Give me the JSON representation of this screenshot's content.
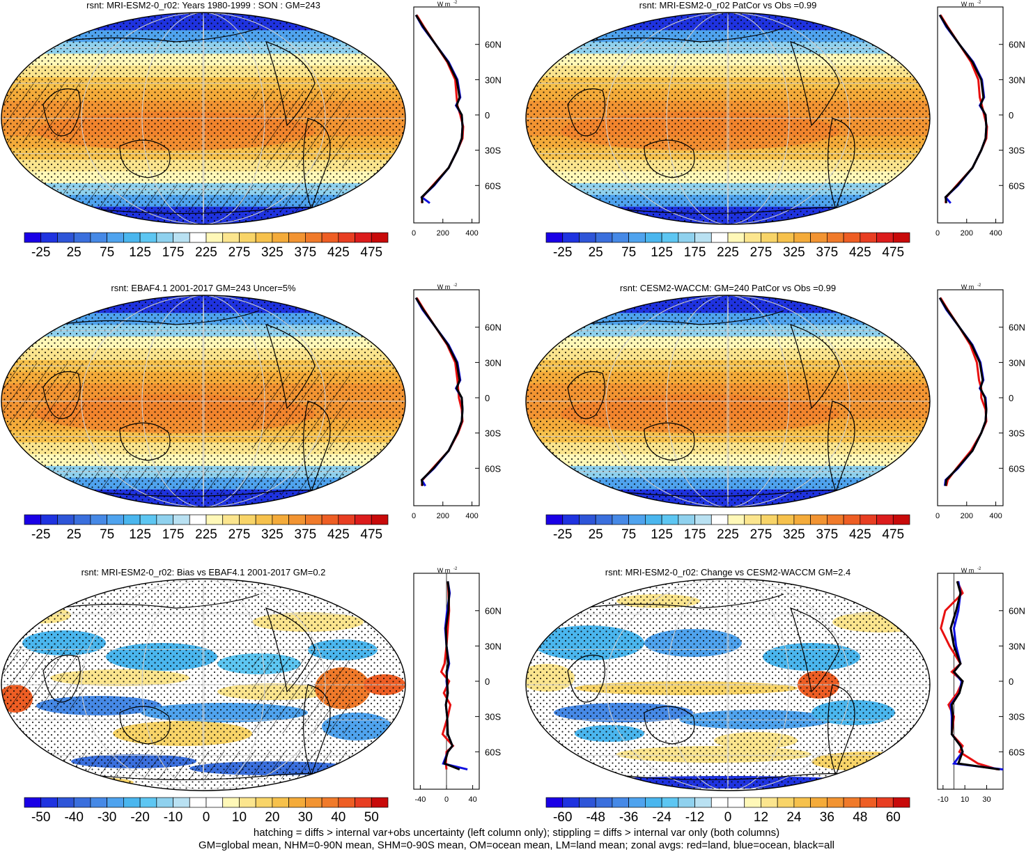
{
  "colors": {
    "full_scale": [
      "#1a00e6",
      "#1f33e0",
      "#2e55d8",
      "#3a6fdd",
      "#4689e6",
      "#4fa3ee",
      "#4ab6ee",
      "#5dc6f2",
      "#8fd1ee",
      "#b9e1f2",
      "#ffffff",
      "#fff8b8",
      "#fbe58e",
      "#f8d468",
      "#f6c14c",
      "#f4ab3a",
      "#f29432",
      "#f07a2a",
      "#ee5e24",
      "#e83e22",
      "#dc1c1c",
      "#c80a0a"
    ],
    "diff_scale": [
      "#1a00e6",
      "#1f33e0",
      "#2e55d8",
      "#3a6fdd",
      "#4689e6",
      "#4fa3ee",
      "#4ab6ee",
      "#5dc6f2",
      "#8fd1ee",
      "#b9e1f2",
      "#ffffff",
      "#ffffff",
      "#fff8b8",
      "#fbe58e",
      "#f8d468",
      "#f6c14c",
      "#f4ab3a",
      "#f29432",
      "#f07a2a",
      "#ee5e24",
      "#e83e22",
      "#c80a0a"
    ],
    "land_line": "#e81010",
    "ocean_line": "#1010e0",
    "all_line": "#000000"
  },
  "profile_units": "W m",
  "profile_units_exp": "-2",
  "lat_ticks": [
    "60N",
    "30N",
    "0",
    "30S",
    "60S"
  ],
  "chart_data": [
    {
      "type": "heatmap",
      "panel": "map-top-left",
      "title": "rsnt: MRI-ESM2-0_r02: Years 1980-1999 : SON : GM=243",
      "colorbar": "full",
      "colorbar_labels": [
        "-25",
        "25",
        "75",
        "125",
        "175",
        "225",
        "275",
        "325",
        "375",
        "425",
        "475"
      ],
      "overlay": "hatching+stippling",
      "zonal_mean": {
        "lat": [
          85,
          75,
          60,
          45,
          30,
          15,
          8,
          0,
          -10,
          -20,
          -30,
          -45,
          -60,
          -70,
          -75
        ],
        "x_ticks": [
          "0",
          "200",
          "400"
        ],
        "xlim": [
          0,
          450
        ],
        "land": [
          20,
          70,
          150,
          230,
          285,
          295,
          300,
          320,
          340,
          335,
          300,
          240,
          130,
          60,
          55
        ],
        "ocean": [
          15,
          60,
          150,
          240,
          300,
          320,
          290,
          330,
          335,
          330,
          300,
          240,
          140,
          55,
          110
        ],
        "all": [
          15,
          65,
          150,
          235,
          295,
          315,
          295,
          330,
          335,
          330,
          300,
          240,
          135,
          55,
          60
        ]
      }
    },
    {
      "type": "heatmap",
      "panel": "map-top-right",
      "title": "rsnt: MRI-ESM2-0_r02 PatCor vs Obs =0.99",
      "colorbar": "full",
      "colorbar_labels": [
        "-25",
        "25",
        "75",
        "125",
        "175",
        "225",
        "275",
        "325",
        "375",
        "425",
        "475"
      ],
      "overlay": "stippling",
      "zonal_mean": {
        "lat": [
          85,
          75,
          60,
          45,
          30,
          15,
          8,
          0,
          -10,
          -20,
          -30,
          -45,
          -60,
          -70,
          -75
        ],
        "x_ticks": [
          "0",
          "200",
          "400"
        ],
        "xlim": [
          0,
          450
        ],
        "land": [
          20,
          70,
          150,
          230,
          280,
          290,
          305,
          320,
          340,
          335,
          300,
          240,
          130,
          60,
          55
        ],
        "ocean": [
          15,
          60,
          150,
          245,
          305,
          320,
          290,
          330,
          335,
          330,
          300,
          240,
          140,
          55,
          90
        ],
        "all": [
          15,
          65,
          150,
          240,
          300,
          315,
          295,
          330,
          335,
          330,
          300,
          240,
          135,
          55,
          60
        ]
      }
    },
    {
      "type": "heatmap",
      "panel": "map-middle-left",
      "title": "rsnt: EBAF4.1 2001-2017 GM=243 Uncer=5%",
      "colorbar": "full",
      "colorbar_labels": [
        "-25",
        "25",
        "75",
        "125",
        "175",
        "225",
        "275",
        "325",
        "375",
        "425",
        "475"
      ],
      "overlay": "hatching+stippling",
      "zonal_mean": {
        "lat": [
          85,
          75,
          60,
          45,
          30,
          15,
          8,
          0,
          -10,
          -20,
          -30,
          -45,
          -60,
          -70,
          -75
        ],
        "x_ticks": [
          "0",
          "200",
          "400"
        ],
        "xlim": [
          0,
          450
        ],
        "land": [
          20,
          70,
          150,
          230,
          285,
          300,
          305,
          310,
          330,
          335,
          305,
          240,
          130,
          60,
          55
        ],
        "ocean": [
          15,
          60,
          150,
          240,
          300,
          320,
          290,
          330,
          335,
          330,
          300,
          240,
          140,
          55,
          80
        ],
        "all": [
          15,
          65,
          150,
          235,
          295,
          315,
          295,
          330,
          335,
          330,
          300,
          240,
          135,
          55,
          60
        ]
      }
    },
    {
      "type": "heatmap",
      "panel": "map-middle-right",
      "title": "rsnt: CESM2-WACCM: GM=240 PatCor vs Obs =0.99",
      "colorbar": "full",
      "colorbar_labels": [
        "-25",
        "25",
        "75",
        "125",
        "175",
        "225",
        "275",
        "325",
        "375",
        "425",
        "475"
      ],
      "overlay": "stippling",
      "zonal_mean": {
        "lat": [
          85,
          75,
          60,
          45,
          30,
          15,
          8,
          0,
          -10,
          -20,
          -30,
          -45,
          -60,
          -70,
          -75
        ],
        "x_ticks": [
          "0",
          "200",
          "400"
        ],
        "xlim": [
          0,
          450
        ],
        "land": [
          20,
          70,
          150,
          225,
          270,
          285,
          300,
          300,
          330,
          335,
          300,
          230,
          130,
          70,
          60
        ],
        "ocean": [
          15,
          60,
          150,
          240,
          295,
          315,
          290,
          330,
          335,
          330,
          300,
          240,
          140,
          55,
          50
        ],
        "all": [
          15,
          65,
          150,
          235,
          290,
          310,
          295,
          325,
          335,
          330,
          300,
          240,
          135,
          60,
          55
        ]
      }
    },
    {
      "type": "heatmap",
      "panel": "map-bottom-left",
      "title": "rsnt: MRI-ESM2-0_r02: Bias vs EBAF4.1 2001-2017  GM=0.2",
      "colorbar": "diff50",
      "colorbar_labels": [
        "-50",
        "-40",
        "-30",
        "-20",
        "-10",
        "0",
        "10",
        "20",
        "30",
        "40",
        "50"
      ],
      "overlay": "hatching+stippling",
      "zonal_mean": {
        "lat": [
          85,
          75,
          60,
          45,
          30,
          15,
          8,
          0,
          -10,
          -20,
          -30,
          -45,
          -55,
          -60,
          -70,
          -75
        ],
        "x_ticks": [
          "-40",
          "0",
          "40"
        ],
        "xlim": [
          -50,
          50
        ],
        "land": [
          2,
          3,
          4,
          2,
          0,
          -3,
          -8,
          4,
          -4,
          6,
          2,
          -6,
          10,
          0,
          -1,
          0
        ],
        "ocean": [
          2,
          5,
          1,
          -2,
          0,
          4,
          1,
          0,
          2,
          -1,
          1,
          2,
          9,
          2,
          -5,
          32
        ],
        "all": [
          2,
          4,
          3,
          -1,
          0,
          3,
          0,
          1,
          2,
          -1,
          1,
          2,
          9,
          2,
          -3,
          20
        ]
      }
    },
    {
      "type": "heatmap",
      "panel": "map-bottom-right",
      "title": "rsnt: MRI-ESM2-0_r02: Change vs CESM2-WACCM GM=2.4",
      "colorbar": "diff60",
      "colorbar_labels": [
        "-60",
        "-48",
        "-36",
        "-24",
        "-12",
        "0",
        "12",
        "24",
        "36",
        "48",
        "60"
      ],
      "overlay": "stippling",
      "zonal_mean": {
        "lat": [
          85,
          75,
          60,
          45,
          30,
          15,
          8,
          0,
          -10,
          -20,
          -30,
          -45,
          -55,
          -60,
          -70,
          -75
        ],
        "x_ticks": [
          "-10",
          "10",
          "30"
        ],
        "xlim": [
          -15,
          45
        ],
        "land": [
          3,
          8,
          -8,
          -12,
          -4,
          6,
          -2,
          8,
          3,
          -5,
          0,
          -2,
          8,
          5,
          22,
          40
        ],
        "ocean": [
          4,
          6,
          4,
          0,
          2,
          6,
          0,
          7,
          5,
          -3,
          -2,
          -2,
          6,
          8,
          0,
          45
        ],
        "all": [
          3,
          6,
          2,
          -3,
          0,
          6,
          0,
          8,
          5,
          -2,
          -1,
          -2,
          6,
          8,
          4,
          42
        ]
      }
    }
  ],
  "footer": {
    "line1": "hatching = diffs > internal var+obs uncertainty (left column only); stippling = diffs > internal var only (both columns)",
    "line2": "GM=global mean, NHM=0-90N mean, SHM=0-90S mean, OM=ocean mean, LM=land mean; zonal avgs: red=land, blue=ocean, black=all"
  }
}
